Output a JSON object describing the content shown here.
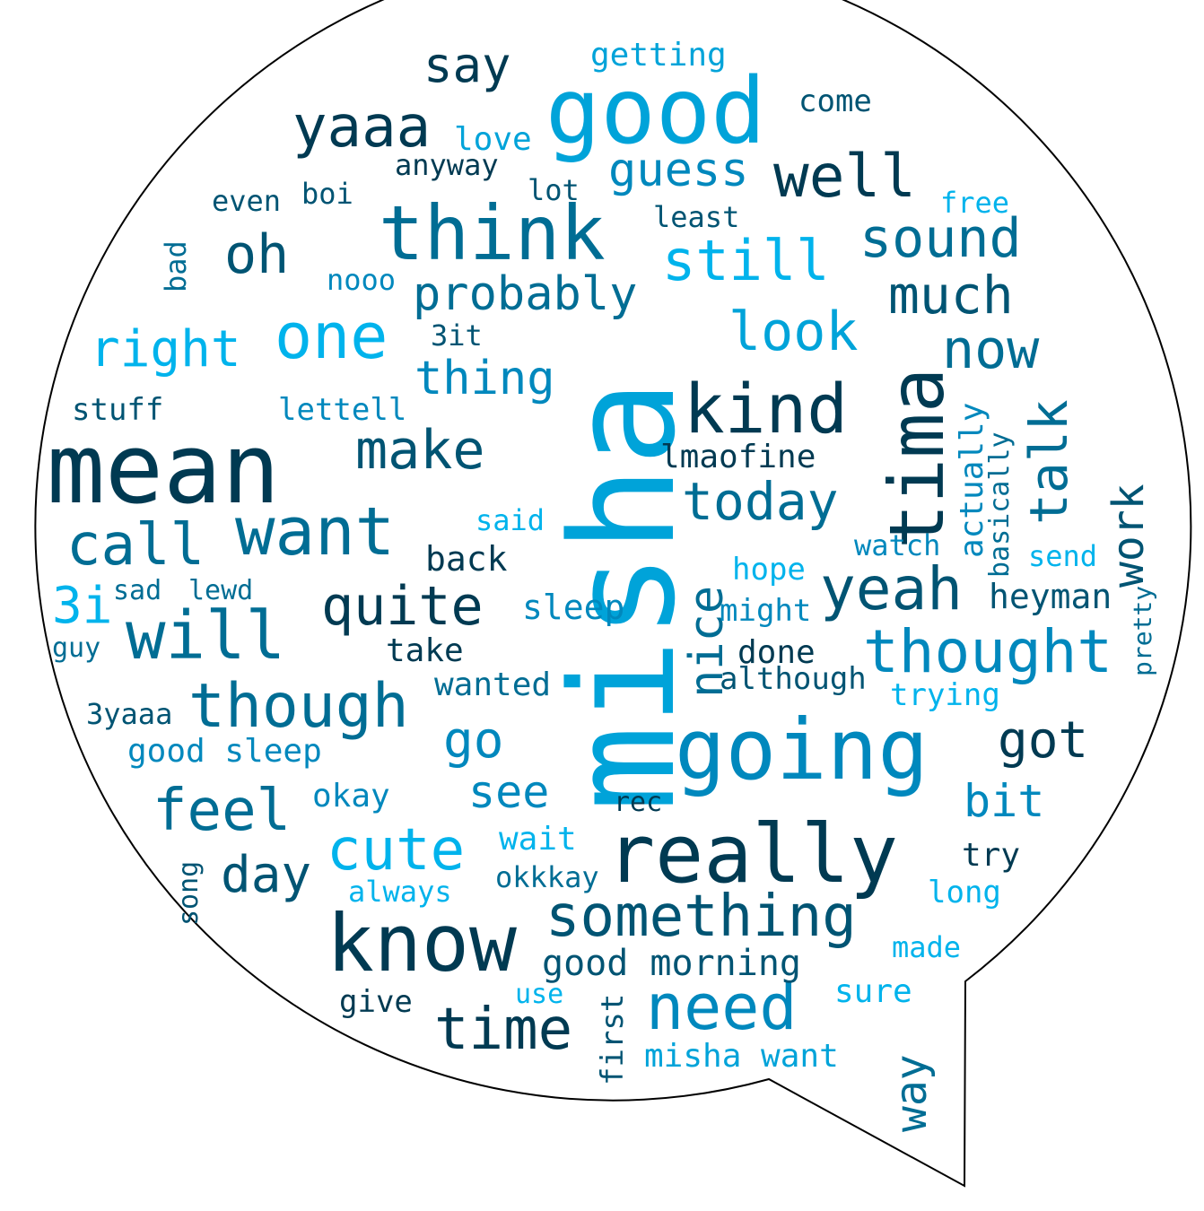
{
  "colors": {
    "darkest": "#003a52",
    "dark": "#005473",
    "mid": "#006d94",
    "blue": "#0088bd",
    "bright": "#00a3d9",
    "light": "#00b3ec",
    "outline": "#000000",
    "background": "#ffffff"
  },
  "words": [
    {
      "text": "misha",
      "color": "bright",
      "orientation": "vertical"
    },
    {
      "text": "mean",
      "color": "darkest",
      "orientation": "horizontal"
    },
    {
      "text": "good",
      "color": "bright",
      "orientation": "horizontal"
    },
    {
      "text": "going",
      "color": "blue",
      "orientation": "horizontal"
    },
    {
      "text": "really",
      "color": "darkest",
      "orientation": "horizontal"
    },
    {
      "text": "know",
      "color": "darkest",
      "orientation": "horizontal"
    },
    {
      "text": "think",
      "color": "mid",
      "orientation": "horizontal"
    },
    {
      "text": "tima",
      "color": "darkest",
      "orientation": "vertical"
    },
    {
      "text": "kind",
      "color": "darkest",
      "orientation": "horizontal"
    },
    {
      "text": "want",
      "color": "mid",
      "orientation": "horizontal"
    },
    {
      "text": "will",
      "color": "mid",
      "orientation": "horizontal"
    },
    {
      "text": "one",
      "color": "light",
      "orientation": "horizontal"
    },
    {
      "text": "need",
      "color": "blue",
      "orientation": "horizontal"
    },
    {
      "text": "though",
      "color": "mid",
      "orientation": "horizontal"
    },
    {
      "text": "yeah",
      "color": "dark",
      "orientation": "horizontal"
    },
    {
      "text": "something",
      "color": "dark",
      "orientation": "horizontal"
    },
    {
      "text": "thought",
      "color": "blue",
      "orientation": "horizontal"
    },
    {
      "text": "cute",
      "color": "light",
      "orientation": "horizontal"
    },
    {
      "text": "well",
      "color": "darkest",
      "orientation": "horizontal"
    },
    {
      "text": "time",
      "color": "darkest",
      "orientation": "horizontal"
    },
    {
      "text": "yaaa",
      "color": "darkest",
      "orientation": "horizontal"
    },
    {
      "text": "call",
      "color": "mid",
      "orientation": "horizontal"
    },
    {
      "text": "feel",
      "color": "mid",
      "orientation": "horizontal"
    },
    {
      "text": "quite",
      "color": "darkest",
      "orientation": "horizontal"
    },
    {
      "text": "look",
      "color": "bright",
      "orientation": "horizontal"
    },
    {
      "text": "still",
      "color": "light",
      "orientation": "horizontal"
    },
    {
      "text": "now",
      "color": "mid",
      "orientation": "horizontal"
    },
    {
      "text": "today",
      "color": "mid",
      "orientation": "horizontal"
    },
    {
      "text": "oh",
      "color": "dark",
      "orientation": "horizontal"
    },
    {
      "text": "make",
      "color": "dark",
      "orientation": "horizontal"
    },
    {
      "text": "sound",
      "color": "mid",
      "orientation": "horizontal"
    },
    {
      "text": "right",
      "color": "light",
      "orientation": "horizontal"
    },
    {
      "text": "much",
      "color": "dark",
      "orientation": "horizontal"
    },
    {
      "text": "talk",
      "color": "mid",
      "orientation": "vertical"
    },
    {
      "text": "got",
      "color": "darkest",
      "orientation": "horizontal"
    },
    {
      "text": "probably",
      "color": "mid",
      "orientation": "horizontal"
    },
    {
      "text": "guess",
      "color": "blue",
      "orientation": "horizontal"
    },
    {
      "text": "day",
      "color": "dark",
      "orientation": "horizontal"
    },
    {
      "text": "say",
      "color": "darkest",
      "orientation": "horizontal"
    },
    {
      "text": "nice",
      "color": "mid",
      "orientation": "vertical"
    },
    {
      "text": "thing",
      "color": "blue",
      "orientation": "horizontal"
    },
    {
      "text": "go",
      "color": "blue",
      "orientation": "horizontal"
    },
    {
      "text": "3i",
      "color": "light",
      "orientation": "horizontal"
    },
    {
      "text": "work",
      "color": "dark",
      "orientation": "vertical"
    },
    {
      "text": "see",
      "color": "blue",
      "orientation": "horizontal"
    },
    {
      "text": "bit",
      "color": "blue",
      "orientation": "horizontal"
    },
    {
      "text": "way",
      "color": "mid",
      "orientation": "vertical"
    },
    {
      "text": "good morning",
      "color": "dark",
      "orientation": "horizontal"
    },
    {
      "text": "heyman",
      "color": "dark",
      "orientation": "horizontal"
    },
    {
      "text": "back",
      "color": "darkest",
      "orientation": "horizontal"
    },
    {
      "text": "sleep",
      "color": "blue",
      "orientation": "horizontal"
    },
    {
      "text": "actually",
      "color": "blue",
      "orientation": "vertical"
    },
    {
      "text": "good sleep",
      "color": "blue",
      "orientation": "horizontal"
    },
    {
      "text": "lmaofine",
      "color": "darkest",
      "orientation": "horizontal"
    },
    {
      "text": "take",
      "color": "darkest",
      "orientation": "horizontal"
    },
    {
      "text": "wanted",
      "color": "mid",
      "orientation": "horizontal"
    },
    {
      "text": "misha want",
      "color": "bright",
      "orientation": "horizontal"
    },
    {
      "text": "although",
      "color": "dark",
      "orientation": "horizontal"
    },
    {
      "text": "okay",
      "color": "blue",
      "orientation": "horizontal"
    },
    {
      "text": "wait",
      "color": "light",
      "orientation": "horizontal"
    },
    {
      "text": "done",
      "color": "darkest",
      "orientation": "horizontal"
    },
    {
      "text": "sure",
      "color": "light",
      "orientation": "horizontal"
    },
    {
      "text": "try",
      "color": "darkest",
      "orientation": "horizontal"
    },
    {
      "text": "first",
      "color": "dark",
      "orientation": "vertical"
    },
    {
      "text": "give",
      "color": "darkest",
      "orientation": "horizontal"
    },
    {
      "text": "hope",
      "color": "light",
      "orientation": "horizontal"
    },
    {
      "text": "might",
      "color": "blue",
      "orientation": "horizontal"
    },
    {
      "text": "basically",
      "color": "mid",
      "orientation": "vertical"
    },
    {
      "text": "trying",
      "color": "light",
      "orientation": "horizontal"
    },
    {
      "text": "lettell",
      "color": "blue",
      "orientation": "horizontal"
    },
    {
      "text": "stuff",
      "color": "dark",
      "orientation": "horizontal"
    },
    {
      "text": "okkkay",
      "color": "mid",
      "orientation": "horizontal"
    },
    {
      "text": "always",
      "color": "light",
      "orientation": "horizontal"
    },
    {
      "text": "long",
      "color": "light",
      "orientation": "horizontal"
    },
    {
      "text": "made",
      "color": "light",
      "orientation": "horizontal"
    },
    {
      "text": "3yaaa",
      "color": "dark",
      "orientation": "horizontal"
    },
    {
      "text": "love",
      "color": "bright",
      "orientation": "horizontal"
    },
    {
      "text": "come",
      "color": "dark",
      "orientation": "horizontal"
    },
    {
      "text": "getting",
      "color": "bright",
      "orientation": "horizontal"
    },
    {
      "text": "anyway",
      "color": "darkest",
      "orientation": "horizontal"
    },
    {
      "text": "lot",
      "color": "dark",
      "orientation": "horizontal"
    },
    {
      "text": "least",
      "color": "dark",
      "orientation": "horizontal"
    },
    {
      "text": "boi",
      "color": "dark",
      "orientation": "horizontal"
    },
    {
      "text": "even",
      "color": "dark",
      "orientation": "horizontal"
    },
    {
      "text": "free",
      "color": "light",
      "orientation": "horizontal"
    },
    {
      "text": "nooo",
      "color": "blue",
      "orientation": "horizontal"
    },
    {
      "text": "3it",
      "color": "dark",
      "orientation": "horizontal"
    },
    {
      "text": "bad",
      "color": "mid",
      "orientation": "vertical"
    },
    {
      "text": "said",
      "color": "light",
      "orientation": "horizontal"
    },
    {
      "text": "watch",
      "color": "blue",
      "orientation": "horizontal"
    },
    {
      "text": "send",
      "color": "light",
      "orientation": "horizontal"
    },
    {
      "text": "pretty",
      "color": "mid",
      "orientation": "vertical"
    },
    {
      "text": "sad",
      "color": "mid",
      "orientation": "horizontal"
    },
    {
      "text": "lewd",
      "color": "mid",
      "orientation": "horizontal"
    },
    {
      "text": "guy",
      "color": "mid",
      "orientation": "horizontal"
    },
    {
      "text": "rec",
      "color": "darkest",
      "orientation": "horizontal"
    },
    {
      "text": "song",
      "color": "dark",
      "orientation": "vertical"
    },
    {
      "text": "use",
      "color": "light",
      "orientation": "horizontal"
    }
  ]
}
